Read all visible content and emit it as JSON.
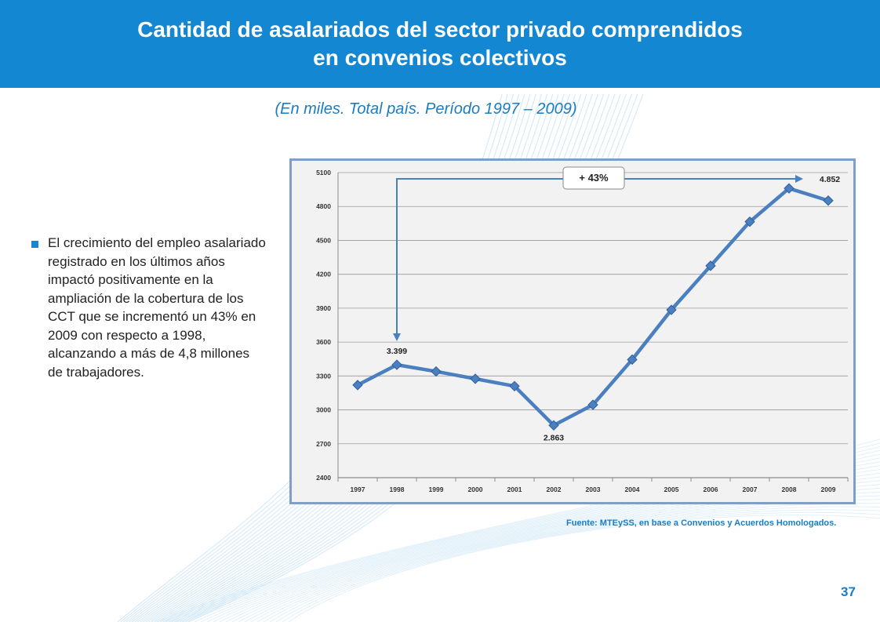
{
  "slide": {
    "title_line1": "Cantidad de asalariados del sector privado comprendidos",
    "title_line2": "en convenios colectivos",
    "subtitle": "(En miles. Total país. Período 1997 – 2009)",
    "bullet_text": "El crecimiento del empleo asalariado registrado en los últimos años impactó positivamente en la ampliación de la cobertura de los CCT que se incrementó un 43% en 2009 con respecto a 1998, alcanzando a más de 4,8 millones de trabajadores.",
    "source": "Fuente: MTEySS, en base a Convenios y Acuerdos Homologados.",
    "page_number": "37",
    "accent_color": "#1487d2",
    "series_color": "#4a7fc0"
  },
  "chart_data": {
    "type": "line",
    "title": "",
    "xlabel": "",
    "ylabel": "",
    "x": [
      "1997",
      "1998",
      "1999",
      "2000",
      "2001",
      "2002",
      "2003",
      "2004",
      "2005",
      "2006",
      "2007",
      "2008",
      "2009"
    ],
    "series": [
      {
        "values": [
          3220,
          3399,
          3340,
          3275,
          3210,
          2863,
          3045,
          3445,
          3885,
          4275,
          4665,
          4960,
          4852
        ]
      }
    ],
    "yticks": [
      2400,
      2700,
      3000,
      3300,
      3600,
      3900,
      4200,
      4500,
      4800,
      5100
    ],
    "ylim": [
      2400,
      5100
    ],
    "grid": true,
    "legend": "none",
    "annotations": {
      "growth_label": "+ 43%",
      "label_1998": "3.399",
      "label_2002": "2.863",
      "label_2009": "4.852"
    }
  }
}
